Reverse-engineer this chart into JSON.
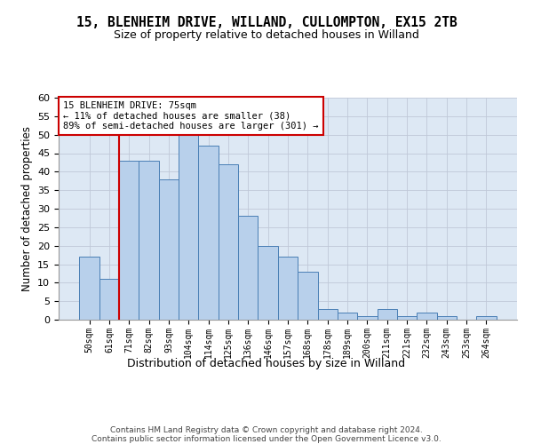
{
  "title_line1": "15, BLENHEIM DRIVE, WILLAND, CULLOMPTON, EX15 2TB",
  "title_line2": "Size of property relative to detached houses in Willand",
  "xlabel": "Distribution of detached houses by size in Willand",
  "ylabel": "Number of detached properties",
  "categories": [
    "50sqm",
    "61sqm",
    "71sqm",
    "82sqm",
    "93sqm",
    "104sqm",
    "114sqm",
    "125sqm",
    "136sqm",
    "146sqm",
    "157sqm",
    "168sqm",
    "178sqm",
    "189sqm",
    "200sqm",
    "211sqm",
    "221sqm",
    "232sqm",
    "243sqm",
    "253sqm",
    "264sqm"
  ],
  "values": [
    17,
    11,
    43,
    43,
    38,
    50,
    47,
    42,
    28,
    20,
    17,
    13,
    3,
    2,
    1,
    3,
    1,
    2,
    1,
    0,
    1
  ],
  "bar_color": "#b8d0eb",
  "bar_edge_color": "#4a7fb5",
  "vline_x_idx": 1.5,
  "vline_color": "#cc0000",
  "annotation_line1": "15 BLENHEIM DRIVE: 75sqm",
  "annotation_line2": "← 11% of detached houses are smaller (38)",
  "annotation_line3": "89% of semi-detached houses are larger (301) →",
  "annotation_box_facecolor": "white",
  "annotation_box_edgecolor": "#cc0000",
  "ylim": [
    0,
    60
  ],
  "yticks": [
    0,
    5,
    10,
    15,
    20,
    25,
    30,
    35,
    40,
    45,
    50,
    55,
    60
  ],
  "grid_color": "#c0c8d8",
  "bg_color": "#dde8f4",
  "footer_line1": "Contains HM Land Registry data © Crown copyright and database right 2024.",
  "footer_line2": "Contains public sector information licensed under the Open Government Licence v3.0."
}
